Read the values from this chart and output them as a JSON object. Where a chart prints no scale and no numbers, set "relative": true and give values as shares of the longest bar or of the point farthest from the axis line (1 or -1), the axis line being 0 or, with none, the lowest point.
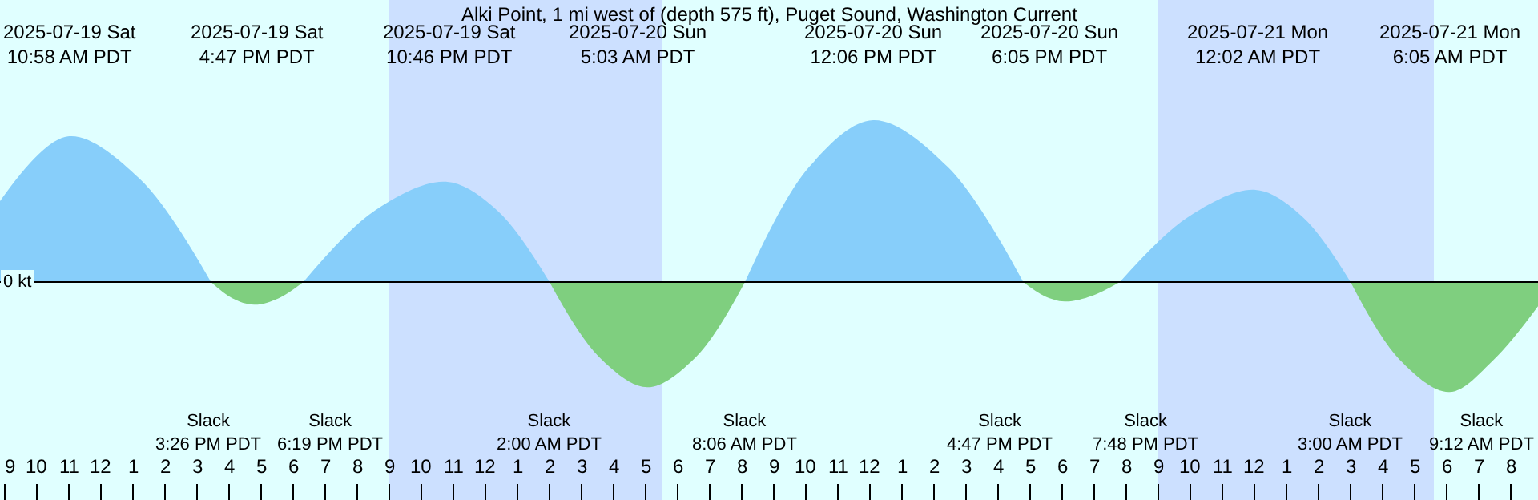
{
  "chart_data": {
    "type": "area",
    "relative": true,
    "title": "Alki Point, 1 mi west of (depth 575 ft), Puget Sound, Washington Current",
    "xlim": [
      "2025-07-19T08:51",
      "2025-07-21T08:51"
    ],
    "xticks": [
      {
        "value": "2025-07-19T09:00",
        "label": "9"
      },
      {
        "value": "2025-07-19T10:00",
        "label": "10"
      },
      {
        "value": "2025-07-19T11:00",
        "label": "11"
      },
      {
        "value": "2025-07-19T12:00",
        "label": "12"
      },
      {
        "value": "2025-07-19T13:00",
        "label": "1"
      },
      {
        "value": "2025-07-19T14:00",
        "label": "2"
      },
      {
        "value": "2025-07-19T15:00",
        "label": "3"
      },
      {
        "value": "2025-07-19T16:00",
        "label": "4"
      },
      {
        "value": "2025-07-19T17:00",
        "label": "5"
      },
      {
        "value": "2025-07-19T18:00",
        "label": "6"
      },
      {
        "value": "2025-07-19T19:00",
        "label": "7"
      },
      {
        "value": "2025-07-19T20:00",
        "label": "8"
      },
      {
        "value": "2025-07-19T21:00",
        "label": "9"
      },
      {
        "value": "2025-07-19T22:00",
        "label": "10"
      },
      {
        "value": "2025-07-19T23:00",
        "label": "11"
      },
      {
        "value": "2025-07-20T00:00",
        "label": "12"
      },
      {
        "value": "2025-07-20T01:00",
        "label": "1"
      },
      {
        "value": "2025-07-20T02:00",
        "label": "2"
      },
      {
        "value": "2025-07-20T03:00",
        "label": "3"
      },
      {
        "value": "2025-07-20T04:00",
        "label": "4"
      },
      {
        "value": "2025-07-20T05:00",
        "label": "5"
      },
      {
        "value": "2025-07-20T06:00",
        "label": "6"
      },
      {
        "value": "2025-07-20T07:00",
        "label": "7"
      },
      {
        "value": "2025-07-20T08:00",
        "label": "8"
      },
      {
        "value": "2025-07-20T09:00",
        "label": "9"
      },
      {
        "value": "2025-07-20T10:00",
        "label": "10"
      },
      {
        "value": "2025-07-20T11:00",
        "label": "11"
      },
      {
        "value": "2025-07-20T12:00",
        "label": "12"
      },
      {
        "value": "2025-07-20T13:00",
        "label": "1"
      },
      {
        "value": "2025-07-20T14:00",
        "label": "2"
      },
      {
        "value": "2025-07-20T15:00",
        "label": "3"
      },
      {
        "value": "2025-07-20T16:00",
        "label": "4"
      },
      {
        "value": "2025-07-20T17:00",
        "label": "5"
      },
      {
        "value": "2025-07-20T18:00",
        "label": "6"
      },
      {
        "value": "2025-07-20T19:00",
        "label": "7"
      },
      {
        "value": "2025-07-20T20:00",
        "label": "8"
      },
      {
        "value": "2025-07-20T21:00",
        "label": "9"
      },
      {
        "value": "2025-07-20T22:00",
        "label": "10"
      },
      {
        "value": "2025-07-20T23:00",
        "label": "11"
      },
      {
        "value": "2025-07-21T00:00",
        "label": "12"
      },
      {
        "value": "2025-07-21T01:00",
        "label": "1"
      },
      {
        "value": "2025-07-21T02:00",
        "label": "2"
      },
      {
        "value": "2025-07-21T03:00",
        "label": "3"
      },
      {
        "value": "2025-07-21T04:00",
        "label": "4"
      },
      {
        "value": "2025-07-21T05:00",
        "label": "5"
      },
      {
        "value": "2025-07-21T06:00",
        "label": "6"
      },
      {
        "value": "2025-07-21T07:00",
        "label": "7"
      },
      {
        "value": "2025-07-21T08:00",
        "label": "8"
      }
    ],
    "series": [
      {
        "color": "#87cefa",
        "x": [
          "2025-07-19T08:51",
          "2025-07-19T10:58",
          "2025-07-19T13:12",
          "2025-07-19T15:26",
          "2025-07-19T16:47",
          "2025-07-19T18:19",
          "2025-07-19T20:32",
          "2025-07-19T22:46",
          "2025-07-20T00:23",
          "2025-07-20T02:00",
          "2025-07-20T05:03",
          "2025-07-20T08:06",
          "2025-07-20T10:06",
          "2025-07-20T12:06",
          "2025-07-20T14:26",
          "2025-07-20T16:47",
          "2025-07-20T18:05",
          "2025-07-20T19:48",
          "2025-07-20T21:55",
          "2025-07-21T00:02",
          "2025-07-21T01:31",
          "2025-07-21T03:00"
        ],
        "values": [
          0.5,
          0.9,
          0.64,
          0,
          null,
          0,
          0.44,
          0.62,
          0.44,
          0,
          null,
          0,
          0.71,
          1.0,
          0.71,
          0,
          null,
          0,
          0.4,
          0.57,
          0.4,
          0
        ]
      },
      {
        "color": "#7fcf7f",
        "x": [
          "2025-07-19T15:26",
          "2025-07-19T16:06",
          "2025-07-19T16:47",
          "2025-07-19T17:33",
          "2025-07-19T18:19",
          "2025-07-19T20:32",
          "2025-07-20T02:00",
          "2025-07-20T03:32",
          "2025-07-20T05:03",
          "2025-07-20T06:35",
          "2025-07-20T08:06",
          "2025-07-20T12:06",
          "2025-07-20T16:47",
          "2025-07-20T17:26",
          "2025-07-20T18:05",
          "2025-07-20T18:56",
          "2025-07-20T19:48",
          "2025-07-20T23:00",
          "2025-07-21T03:00",
          "2025-07-21T04:32",
          "2025-07-21T06:05",
          "2025-07-21T07:28",
          "2025-07-21T08:51"
        ],
        "values": [
          0,
          -0.1,
          -0.14,
          -0.1,
          0,
          null,
          0,
          -0.46,
          -0.65,
          -0.46,
          0,
          null,
          0,
          -0.085,
          -0.12,
          -0.085,
          0,
          null,
          0,
          -0.48,
          -0.68,
          -0.48,
          -0.15
        ]
      }
    ],
    "ref_lines": [
      {
        "axis": "y",
        "value": 0,
        "label": "0 kt",
        "color": "#000000"
      }
    ],
    "bands": [
      {
        "axis": "x",
        "from": "2025-07-19T21:00",
        "to": "2025-07-20T05:30",
        "color": "#cce0ff"
      },
      {
        "axis": "x",
        "from": "2025-07-20T21:00",
        "to": "2025-07-21T05:36",
        "color": "#cce0ff"
      }
    ],
    "annotations": [
      "2025-07-19 Sat\n10:58 AM PDT",
      "2025-07-19 Sat\n4:47 PM PDT",
      "2025-07-19 Sat\n10:46 PM PDT",
      "2025-07-20 Sun\n5:03 AM PDT",
      "2025-07-20 Sun\n12:06 PM PDT",
      "2025-07-20 Sun\n6:05 PM PDT",
      "2025-07-21 Mon\n12:02 AM PDT",
      "2025-07-21 Mon\n6:05 AM PDT",
      "Slack\n3:26 PM PDT",
      "Slack\n6:19 PM PDT",
      "Slack\n2:00 AM PDT",
      "Slack\n8:06 AM PDT",
      "Slack\n4:47 PM PDT",
      "Slack\n7:48 PM PDT",
      "Slack\n3:00 AM PDT",
      "Slack\n9:12 AM PDT"
    ],
    "grid": false
  }
}
